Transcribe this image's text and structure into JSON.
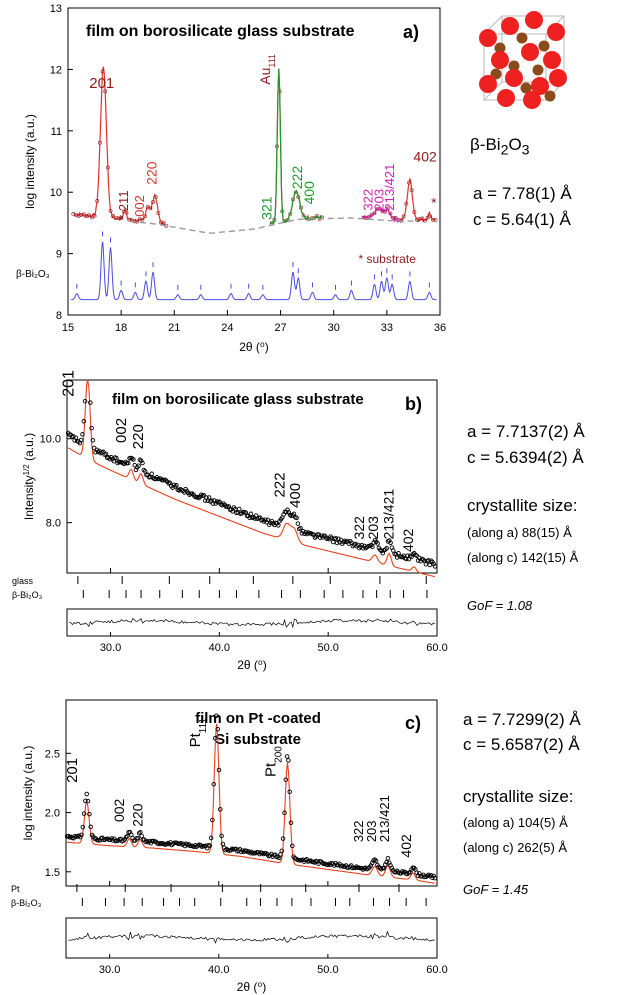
{
  "figure_side_text": {
    "a": {
      "phase_html": "β-Bi<sub>2</sub>O<sub>3</sub>",
      "lattice_a": "a = 7.78(1) Å",
      "lattice_c": "c = 5.64(1) Å"
    },
    "b": {
      "lattice_a": "a = 7.7137(2) Å",
      "lattice_c": "c = 5.6394(2) Å",
      "crystallite_title": "crystallite size:",
      "along_a": "(along a) 88(15) Å",
      "along_c": "(along c) 142(15) Å",
      "gof": "GoF = 1.08"
    },
    "c": {
      "lattice_a": "a = 7.7299(2) Å",
      "lattice_c": "c = 5.6587(2) Å",
      "crystallite_title": "crystallite size:",
      "along_a": "(along a) 104(5) Å",
      "along_c": "(along c) 262(5) Å",
      "gof": "GoF = 1.45"
    }
  },
  "colors": {
    "dark_red": "#8b1a1a",
    "red": "#e23030",
    "green": "#1a9a2a",
    "magenta": "#d020b0",
    "blue": "#4a4ae0",
    "orange_red": "#e8401c",
    "black": "#000000",
    "gray_dash": "#9a9a9a",
    "bi_atom": "#ee2020",
    "o_atom": "#8a4a1a"
  },
  "chart_data": [
    {
      "panel": "a",
      "type": "line",
      "panel_label": "a)",
      "title": "film on borosilicate glass substrate",
      "xlabel": "2θ (⁰)",
      "ylabel": "log intensity (a.u.)",
      "xlim": [
        15,
        36
      ],
      "ylim": [
        8,
        13
      ],
      "xticks": [
        15,
        18,
        21,
        24,
        27,
        30,
        33,
        36
      ],
      "yticks": [
        8,
        9,
        10,
        11,
        12,
        13
      ],
      "reference_label": "β-Bi₂O₃",
      "substrate_note": "* substrate",
      "peaks": [
        {
          "x": 17.0,
          "y": 12.1,
          "height": 2.45,
          "width": 0.35
        },
        {
          "x": 18.2,
          "y": 9.7,
          "height": 0.15,
          "width": 0.2
        },
        {
          "x": 19.5,
          "y": 9.65,
          "height": 0.25,
          "width": 0.25
        },
        {
          "x": 19.9,
          "y": 10.0,
          "height": 0.45,
          "width": 0.3
        },
        {
          "x": 26.9,
          "y": 12.2,
          "height": 2.5,
          "width": 0.18
        },
        {
          "x": 27.8,
          "y": 9.95,
          "height": 0.35,
          "width": 0.35
        },
        {
          "x": 28.0,
          "y": 9.8,
          "height": 0.2,
          "width": 0.3
        },
        {
          "x": 32.5,
          "y": 9.7,
          "height": 0.15,
          "width": 0.4
        },
        {
          "x": 33.0,
          "y": 9.72,
          "height": 0.15,
          "width": 0.4
        },
        {
          "x": 34.3,
          "y": 10.2,
          "height": 0.65,
          "width": 0.3
        },
        {
          "x": 35.4,
          "y": 9.65,
          "height": 0.1,
          "width": 0.2
        }
      ],
      "baseline": [
        [
          15.2,
          9.65
        ],
        [
          17.5,
          9.58
        ],
        [
          20.0,
          9.5
        ],
        [
          23.0,
          9.35
        ],
        [
          25.5,
          9.42
        ],
        [
          28.0,
          9.58
        ],
        [
          31.0,
          9.6
        ],
        [
          33.5,
          9.55
        ],
        [
          35.8,
          9.55
        ]
      ],
      "dashed_background_range": [
        18.5,
        34.5
      ],
      "reference_pattern": [
        {
          "x": 15.5,
          "h": 0.1
        },
        {
          "x": 16.95,
          "h": 0.95
        },
        {
          "x": 17.4,
          "h": 0.85
        },
        {
          "x": 18.0,
          "h": 0.15
        },
        {
          "x": 18.8,
          "h": 0.12
        },
        {
          "x": 19.4,
          "h": 0.3
        },
        {
          "x": 19.8,
          "h": 0.45
        },
        {
          "x": 21.2,
          "h": 0.08
        },
        {
          "x": 22.5,
          "h": 0.08
        },
        {
          "x": 24.2,
          "h": 0.1
        },
        {
          "x": 25.2,
          "h": 0.1
        },
        {
          "x": 26.0,
          "h": 0.08
        },
        {
          "x": 27.7,
          "h": 0.45
        },
        {
          "x": 28.0,
          "h": 0.35
        },
        {
          "x": 28.8,
          "h": 0.12
        },
        {
          "x": 30.1,
          "h": 0.08
        },
        {
          "x": 31.0,
          "h": 0.15
        },
        {
          "x": 32.3,
          "h": 0.25
        },
        {
          "x": 32.7,
          "h": 0.3
        },
        {
          "x": 33.0,
          "h": 0.35
        },
        {
          "x": 33.3,
          "h": 0.25
        },
        {
          "x": 34.3,
          "h": 0.3
        },
        {
          "x": 35.4,
          "h": 0.12
        }
      ],
      "annotations": [
        {
          "text": "201",
          "x": 16.2,
          "y": 11.7,
          "color": "dark_red",
          "rotate": 0,
          "size": 15
        },
        {
          "text": "* 211",
          "x": 18.4,
          "y": 9.55,
          "color": "dark_red",
          "rotate": -90,
          "size": 13
        },
        {
          "text": "002",
          "x": 19.3,
          "y": 9.6,
          "color": "red",
          "rotate": -90,
          "size": 13
        },
        {
          "text": "220",
          "x": 20.0,
          "y": 10.12,
          "color": "red",
          "rotate": -90,
          "size": 14
        },
        {
          "text": "Au",
          "sub": "111",
          "x": 26.4,
          "y": 11.75,
          "color": "dark_red",
          "rotate": -90,
          "size": 14
        },
        {
          "text": "321",
          "x": 26.5,
          "y": 9.55,
          "color": "green",
          "rotate": -90,
          "size": 14
        },
        {
          "text": "222",
          "x": 28.2,
          "y": 10.05,
          "color": "green",
          "rotate": -90,
          "size": 14
        },
        {
          "text": "400",
          "x": 28.9,
          "y": 9.8,
          "color": "green",
          "rotate": -90,
          "size": 14
        },
        {
          "text": "322",
          "x": 32.2,
          "y": 9.7,
          "color": "magenta",
          "rotate": -90,
          "size": 13
        },
        {
          "text": "203",
          "x": 32.8,
          "y": 9.7,
          "color": "magenta",
          "rotate": -90,
          "size": 13
        },
        {
          "text": "213/421",
          "x": 33.4,
          "y": 9.7,
          "color": "magenta",
          "rotate": -90,
          "size": 13
        },
        {
          "text": "402",
          "x": 34.5,
          "y": 10.5,
          "color": "dark_red",
          "rotate": 0,
          "size": 14
        },
        {
          "text": "*",
          "x": 35.5,
          "y": 9.75,
          "color": "dark_red",
          "rotate": 0,
          "size": 14
        }
      ]
    },
    {
      "panel": "b",
      "type": "line",
      "panel_label": "b)",
      "title": "film on borosilicate glass substrate",
      "xlabel": "2θ (⁰)",
      "ylabel": "Intensity",
      "ylabel_sup": "1/2",
      "ylabel_suffix": " (a.u.)",
      "xlim": [
        26,
        60
      ],
      "ylim": [
        6.8,
        11.4
      ],
      "xticks": [
        30.0,
        40.0,
        50.0,
        60.0
      ],
      "xticklabels": [
        "30.0",
        "40.0",
        "50.0",
        "60.0"
      ],
      "yticks": [
        8.0,
        10.0
      ],
      "yticklabels": [
        "8.0",
        "10.0"
      ],
      "tick_rows": [
        "glass",
        "β-Bi₂O₃"
      ],
      "peaks": [
        {
          "x": 27.9,
          "y": 11.3,
          "height": 2.0,
          "width": 0.45
        },
        {
          "x": 31.9,
          "y": 9.6,
          "height": 0.25,
          "width": 0.4
        },
        {
          "x": 32.8,
          "y": 9.5,
          "height": 0.25,
          "width": 0.4
        },
        {
          "x": 46.2,
          "y": 8.15,
          "height": 0.4,
          "width": 0.7
        },
        {
          "x": 46.9,
          "y": 8.0,
          "height": 0.3,
          "width": 0.6
        },
        {
          "x": 54.3,
          "y": 7.4,
          "height": 0.18,
          "width": 0.5
        },
        {
          "x": 55.6,
          "y": 7.5,
          "height": 0.3,
          "width": 0.4
        },
        {
          "x": 57.9,
          "y": 7.15,
          "height": 0.12,
          "width": 0.4
        }
      ],
      "background": [
        [
          26.0,
          10.1
        ],
        [
          28.0,
          9.8
        ],
        [
          30.0,
          9.55
        ],
        [
          33.0,
          9.2
        ],
        [
          36.0,
          8.85
        ],
        [
          40.0,
          8.45
        ],
        [
          44.0,
          8.05
        ],
        [
          48.0,
          7.75
        ],
        [
          52.0,
          7.5
        ],
        [
          56.0,
          7.25
        ],
        [
          60.0,
          7.0
        ]
      ],
      "calc_offset": -0.3,
      "annotations": [
        {
          "text": "201",
          "x": 26.6,
          "y": 11.0,
          "size": 16
        },
        {
          "text": "002",
          "x": 31.4,
          "y": 9.9,
          "size": 15
        },
        {
          "text": "220",
          "x": 33.0,
          "y": 9.75,
          "size": 15
        },
        {
          "text": "222",
          "x": 46.0,
          "y": 8.6,
          "size": 15
        },
        {
          "text": "400",
          "x": 47.4,
          "y": 8.35,
          "size": 15
        },
        {
          "text": "322",
          "x": 53.3,
          "y": 7.6,
          "size": 14
        },
        {
          "text": "203",
          "x": 54.6,
          "y": 7.6,
          "size": 14
        },
        {
          "text": "213/421",
          "x": 56.0,
          "y": 7.6,
          "size": 14
        },
        {
          "text": "402",
          "x": 57.8,
          "y": 7.3,
          "size": 14
        }
      ]
    },
    {
      "panel": "c",
      "type": "line",
      "panel_label": "c)",
      "title": "film on Pt -coated\nSi substrate",
      "xlabel": "2θ (⁰)",
      "ylabel": "log intensity (a.u.)",
      "xlim": [
        26,
        60
      ],
      "ylim": [
        1.38,
        2.95
      ],
      "xticks": [
        30.0,
        40.0,
        50.0,
        60.0
      ],
      "xticklabels": [
        "30.0",
        "40.0",
        "50.0",
        "60.0"
      ],
      "yticks": [
        1.5,
        2.0,
        2.5
      ],
      "yticklabels": [
        "1.5",
        "2.0",
        "2.5"
      ],
      "tick_rows": [
        "Pt",
        "β-Bi₂O₃"
      ],
      "peaks": [
        {
          "x": 27.9,
          "y": 2.15,
          "height": 0.37,
          "width": 0.45
        },
        {
          "x": 31.8,
          "y": 1.85,
          "height": 0.07,
          "width": 0.4
        },
        {
          "x": 32.8,
          "y": 1.85,
          "height": 0.07,
          "width": 0.4
        },
        {
          "x": 39.8,
          "y": 2.85,
          "height": 1.13,
          "width": 0.45
        },
        {
          "x": 46.3,
          "y": 2.5,
          "height": 0.88,
          "width": 0.45
        },
        {
          "x": 54.3,
          "y": 1.6,
          "height": 0.08,
          "width": 0.5
        },
        {
          "x": 55.5,
          "y": 1.63,
          "height": 0.1,
          "width": 0.45
        },
        {
          "x": 57.8,
          "y": 1.55,
          "height": 0.06,
          "width": 0.4
        }
      ],
      "background": [
        [
          26.0,
          1.8
        ],
        [
          30.0,
          1.77
        ],
        [
          34.0,
          1.75
        ],
        [
          38.0,
          1.72
        ],
        [
          42.0,
          1.68
        ],
        [
          46.0,
          1.62
        ],
        [
          50.0,
          1.57
        ],
        [
          54.0,
          1.52
        ],
        [
          58.0,
          1.48
        ],
        [
          60.0,
          1.45
        ]
      ],
      "calc_offset": -0.05,
      "annotations": [
        {
          "text": "201",
          "x": 27.0,
          "y": 2.25,
          "size": 15
        },
        {
          "text": "002",
          "x": 31.3,
          "y": 1.92,
          "size": 14
        },
        {
          "text": "220",
          "x": 33.0,
          "y": 1.88,
          "size": 14
        },
        {
          "text": "Pt",
          "sub": "111",
          "x": 38.3,
          "y": 2.55,
          "size": 15
        },
        {
          "text": "Pt",
          "sub": "200",
          "x": 45.2,
          "y": 2.3,
          "size": 15
        },
        {
          "text": "322",
          "x": 53.2,
          "y": 1.75,
          "size": 13
        },
        {
          "text": "203",
          "x": 54.4,
          "y": 1.75,
          "size": 13
        },
        {
          "text": "213/421",
          "x": 55.6,
          "y": 1.75,
          "size": 13
        },
        {
          "text": "402",
          "x": 57.6,
          "y": 1.62,
          "size": 14
        }
      ]
    }
  ]
}
